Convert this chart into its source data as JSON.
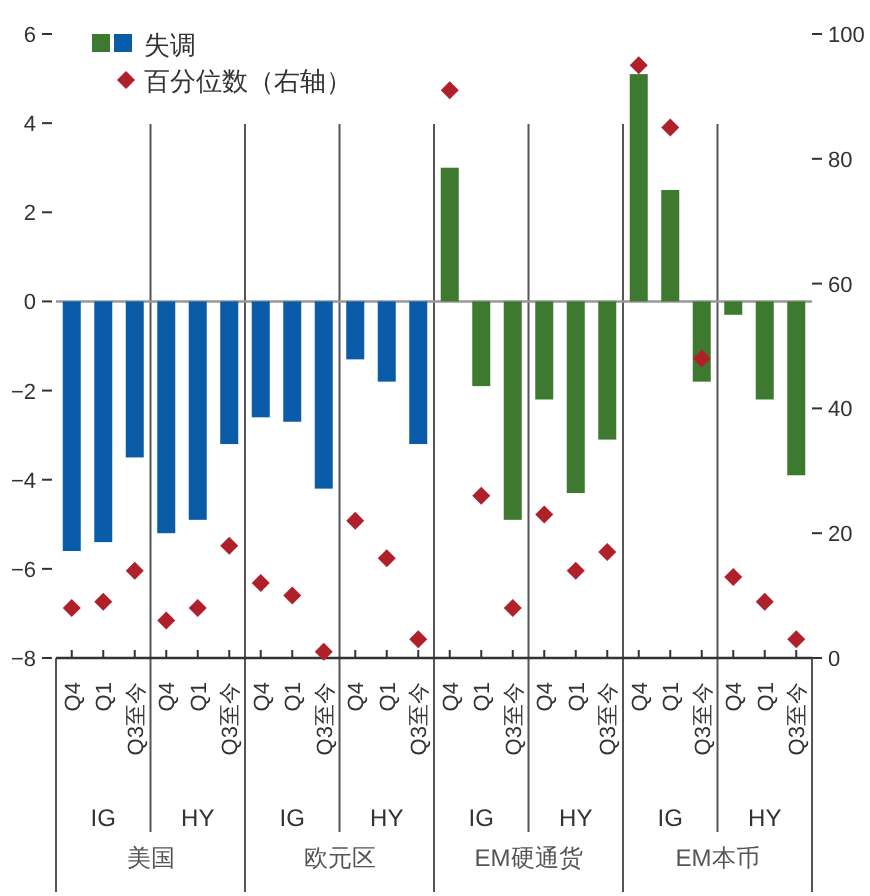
{
  "chart_data": {
    "type": "bar",
    "categories": [
      "Q4",
      "Q1",
      "Q3至今",
      "Q4",
      "Q1",
      "Q3至今",
      "Q4",
      "Q1",
      "Q3至今",
      "Q4",
      "Q1",
      "Q3至今",
      "Q4",
      "Q1",
      "Q3至今",
      "Q4",
      "Q1",
      "Q3至今",
      "Q4",
      "Q1",
      "Q3至今",
      "Q4",
      "Q1",
      "Q3至今"
    ],
    "series": [
      {
        "name": "失调",
        "colors": [
          "#0b5ca8",
          "#0b5ca8",
          "#0b5ca8",
          "#0b5ca8",
          "#0b5ca8",
          "#0b5ca8",
          "#0b5ca8",
          "#0b5ca8",
          "#0b5ca8",
          "#0b5ca8",
          "#0b5ca8",
          "#0b5ca8",
          "#3d7a2f",
          "#3d7a2f",
          "#3d7a2f",
          "#3d7a2f",
          "#3d7a2f",
          "#3d7a2f",
          "#3d7a2f",
          "#3d7a2f",
          "#3d7a2f",
          "#3d7a2f",
          "#3d7a2f",
          "#3d7a2f"
        ],
        "values": [
          -5.6,
          -5.4,
          -3.5,
          -5.2,
          -4.9,
          -3.2,
          -2.6,
          -2.7,
          -4.2,
          -1.3,
          -1.8,
          -3.2,
          3.0,
          -1.9,
          -4.9,
          -2.2,
          -4.3,
          -3.1,
          5.1,
          2.5,
          -1.8,
          -0.3,
          -2.2,
          -3.9
        ]
      },
      {
        "name": "百分位数（右轴）",
        "type": "scatter",
        "axis": "y2",
        "color": "#b0202a",
        "marker": "diamond",
        "values": [
          8,
          9,
          14,
          6,
          8,
          18,
          12,
          10,
          1,
          22,
          16,
          3,
          91,
          26,
          8,
          23,
          14,
          17,
          95,
          85,
          48,
          13,
          9,
          3
        ]
      }
    ],
    "ylim": [
      -8,
      6
    ],
    "yticks": [
      -8,
      -6,
      -4,
      -2,
      0,
      2,
      4,
      6
    ],
    "y2lim": [
      0,
      100
    ],
    "y2ticks": [
      0,
      20,
      40,
      60,
      80,
      100
    ],
    "legend": "top left",
    "annotations": [
      "IG",
      "HY",
      "IG",
      "HY",
      "IG",
      "HY",
      "IG",
      "HY",
      "美国",
      "欧元区",
      "EM硬通货",
      "EM本币"
    ]
  }
}
